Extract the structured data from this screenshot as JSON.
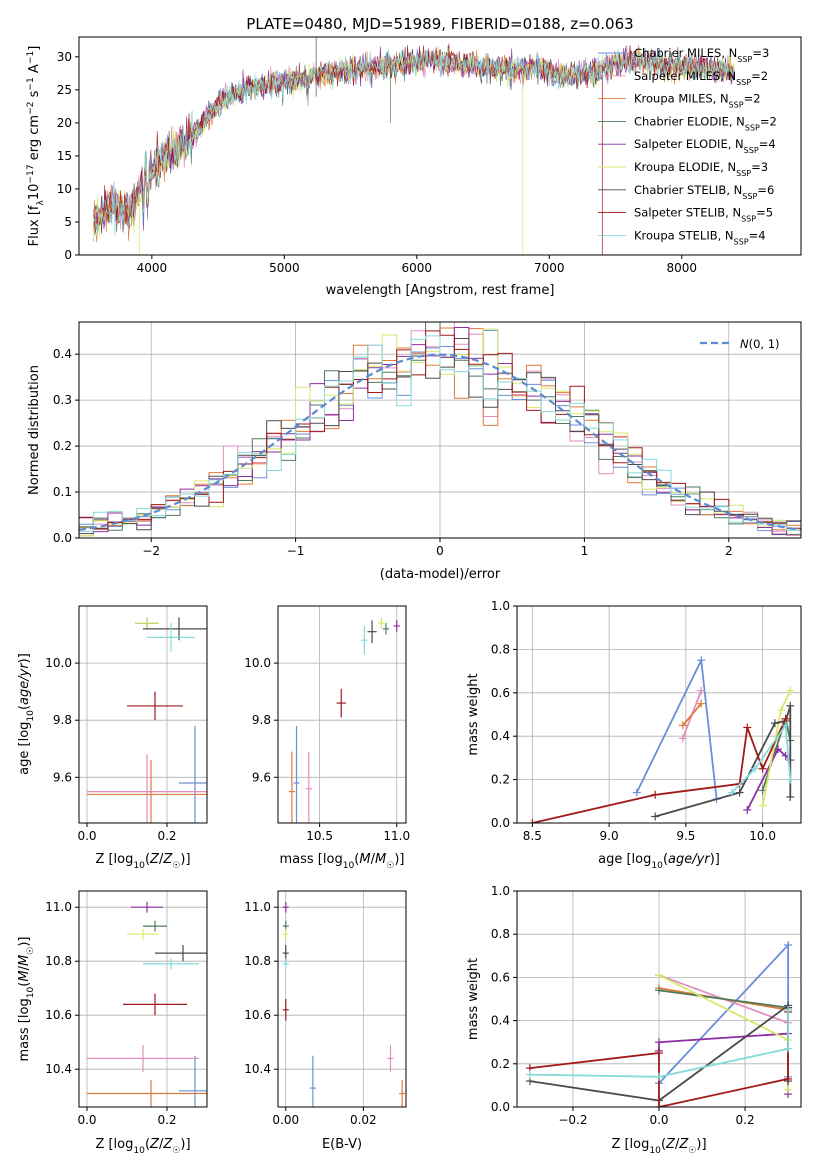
{
  "figure": {
    "title": "PLATE=0480, MJD=51989, FIBERID=0188, z=0.063"
  },
  "colors": {
    "Chabrier MILES": "#6a8fd8",
    "Salpeter MILES": "#e38ec3",
    "Kroupa MILES": "#e07b39",
    "Chabrier ELODIE": "#4e7a5a",
    "Salpeter ELODIE": "#8e2ea3",
    "Kroupa ELODIE": "#d7e86a",
    "Chabrier STELIB": "#4b4b4b",
    "Salpeter STELIB": "#a01a1a",
    "Kroupa STELIB": "#86dada",
    "gaussian": "#5b8bd0"
  },
  "chart_data": [
    {
      "id": "spectrum",
      "type": "line",
      "xlabel": "wavelength [Angstrom, rest frame]",
      "ylabel": "Flux [f_λ 10^-17 erg cm^-2 s^-1 A^-1]",
      "xlim": [
        3450,
        8900
      ],
      "ylim": [
        0,
        33
      ],
      "xticks": [
        4000,
        5000,
        6000,
        7000,
        8000
      ],
      "yticks": [
        0,
        5,
        10,
        15,
        20,
        25,
        30
      ],
      "legend_position": "top-right",
      "legend": [
        {
          "name": "Chabrier MILES",
          "nssp": "3"
        },
        {
          "name": "Salpeter MILES",
          "nssp": "2"
        },
        {
          "name": "Kroupa MILES",
          "nssp": "2"
        },
        {
          "name": "Chabrier ELODIE",
          "nssp": "2"
        },
        {
          "name": "Salpeter ELODIE",
          "nssp": "4"
        },
        {
          "name": "Kroupa ELODIE",
          "nssp": "3"
        },
        {
          "name": "Chabrier STELIB",
          "nssp": "6"
        },
        {
          "name": "Salpeter STELIB",
          "nssp": "5"
        },
        {
          "name": "Kroupa STELIB",
          "nssp": "4"
        }
      ],
      "continuum": [
        [
          3560,
          5
        ],
        [
          3650,
          7
        ],
        [
          3750,
          7.5
        ],
        [
          3850,
          7
        ],
        [
          3950,
          12
        ],
        [
          4050,
          14
        ],
        [
          4150,
          15.5
        ],
        [
          4250,
          17
        ],
        [
          4350,
          19
        ],
        [
          4500,
          23
        ],
        [
          4700,
          25
        ],
        [
          4900,
          26
        ],
        [
          5100,
          26.5
        ],
        [
          5300,
          27.5
        ],
        [
          5500,
          28
        ],
        [
          5700,
          28.5
        ],
        [
          5900,
          29
        ],
        [
          6100,
          29.5
        ],
        [
          6300,
          29
        ],
        [
          6500,
          28.5
        ],
        [
          6700,
          28
        ],
        [
          6900,
          28.5
        ],
        [
          7100,
          27
        ],
        [
          7300,
          27.5
        ],
        [
          7500,
          29
        ],
        [
          7700,
          29.5
        ],
        [
          7900,
          28.5
        ],
        [
          8100,
          28.5
        ],
        [
          8300,
          28
        ],
        [
          8400,
          27.5
        ],
        [
          8900,
          27.5
        ]
      ]
    },
    {
      "id": "residuals",
      "type": "histogram",
      "xlabel": "(data-model)/error",
      "ylabel": "Normed distribution",
      "xlim": [
        -2.5,
        2.5
      ],
      "ylim": [
        0,
        0.47
      ],
      "xticks": [
        -2,
        -1,
        0,
        1,
        2
      ],
      "yticks": [
        0.0,
        0.1,
        0.2,
        0.3,
        0.4
      ],
      "grid": true,
      "legend_label": "N(0,1)",
      "bin_width": 0.1
    },
    {
      "id": "age_vs_Z",
      "type": "scatter",
      "xlabel": "Z [log10(Z/Z☉)]",
      "ylabel": "age [log10(age/yr)]",
      "xlim": [
        -0.02,
        0.3
      ],
      "ylim": [
        9.44,
        10.2
      ],
      "xticks": [
        0.0,
        0.2
      ],
      "yticks": [
        9.6,
        9.8,
        10.0
      ],
      "grid": true,
      "points": [
        {
          "model": "Chabrier MILES",
          "x": 0.27,
          "y": 9.58,
          "xerr": 0.04,
          "yerr": 0.2
        },
        {
          "model": "Salpeter MILES",
          "x": 0.15,
          "y": 9.55,
          "xerr": 0.15,
          "yerr": 0.13
        },
        {
          "model": "Kroupa MILES",
          "x": 0.16,
          "y": 9.54,
          "xerr": 0.16,
          "yerr": 0.12
        },
        {
          "model": "Chabrier ELODIE",
          "x": 0.15,
          "y": 10.14,
          "xerr": 0.02,
          "yerr": 0.02
        },
        {
          "model": "Salpeter ELODIE",
          "x": 0.15,
          "y": 10.14,
          "xerr": 0.03,
          "yerr": 0.02
        },
        {
          "model": "Kroupa ELODIE",
          "x": 0.15,
          "y": 10.14,
          "xerr": 0.03,
          "yerr": 0.02
        },
        {
          "model": "Chabrier STELIB",
          "x": 0.23,
          "y": 10.12,
          "xerr": 0.09,
          "yerr": 0.04
        },
        {
          "model": "Salpeter STELIB",
          "x": 0.17,
          "y": 9.85,
          "xerr": 0.07,
          "yerr": 0.05
        },
        {
          "model": "Kroupa STELIB",
          "x": 0.21,
          "y": 10.09,
          "xerr": 0.06,
          "yerr": 0.05
        }
      ]
    },
    {
      "id": "age_vs_mass",
      "type": "scatter",
      "xlabel": "mass [log10(M/M☉)]",
      "ylabel": "",
      "xlim": [
        10.23,
        11.06
      ],
      "ylim": [
        9.44,
        10.2
      ],
      "xticks": [
        10.5,
        11.0
      ],
      "yticks": [
        9.6,
        9.8,
        10.0
      ],
      "grid": true,
      "points": [
        {
          "model": "Chabrier MILES",
          "x": 10.35,
          "y": 9.58,
          "xerr": 0.02,
          "yerr": 0.2
        },
        {
          "model": "Salpeter MILES",
          "x": 10.43,
          "y": 9.56,
          "xerr": 0.02,
          "yerr": 0.13
        },
        {
          "model": "Kroupa MILES",
          "x": 10.32,
          "y": 9.55,
          "xerr": 0.02,
          "yerr": 0.14
        },
        {
          "model": "Chabrier ELODIE",
          "x": 10.93,
          "y": 10.12,
          "xerr": 0.02,
          "yerr": 0.02
        },
        {
          "model": "Salpeter ELODIE",
          "x": 11.0,
          "y": 10.13,
          "xerr": 0.02,
          "yerr": 0.02
        },
        {
          "model": "Kroupa ELODIE",
          "x": 10.9,
          "y": 10.14,
          "xerr": 0.02,
          "yerr": 0.02
        },
        {
          "model": "Chabrier STELIB",
          "x": 10.84,
          "y": 10.11,
          "xerr": 0.03,
          "yerr": 0.04
        },
        {
          "model": "Salpeter STELIB",
          "x": 10.64,
          "y": 9.86,
          "xerr": 0.03,
          "yerr": 0.05
        },
        {
          "model": "Kroupa STELIB",
          "x": 10.79,
          "y": 10.08,
          "xerr": 0.02,
          "yerr": 0.05
        }
      ]
    },
    {
      "id": "weight_vs_age",
      "type": "line",
      "xlabel": "age [log10(age/yr)]",
      "ylabel": "mass weight",
      "xlim": [
        8.4,
        10.25
      ],
      "ylim": [
        0,
        1.0
      ],
      "xticks": [
        8.5,
        9.0,
        9.5,
        10.0
      ],
      "yticks": [
        0.0,
        0.2,
        0.4,
        0.6,
        0.8,
        1.0
      ],
      "grid": true,
      "series": [
        {
          "model": "Chabrier MILES",
          "points": [
            [
              9.18,
              0.14
            ],
            [
              9.6,
              0.75
            ],
            [
              9.7,
              0.11
            ]
          ]
        },
        {
          "model": "Salpeter MILES",
          "points": [
            [
              9.48,
              0.39
            ],
            [
              9.6,
              0.61
            ]
          ]
        },
        {
          "model": "Kroupa MILES",
          "points": [
            [
              9.48,
              0.45
            ],
            [
              9.6,
              0.55
            ]
          ]
        },
        {
          "model": "Chabrier ELODIE",
          "points": [
            [
              10.0,
              0.15
            ],
            [
              10.15,
              0.48
            ],
            [
              10.18,
              0.38
            ]
          ]
        },
        {
          "model": "Salpeter ELODIE",
          "points": [
            [
              9.9,
              0.06
            ],
            [
              10.1,
              0.34
            ],
            [
              10.15,
              0.31
            ],
            [
              10.18,
              0.29
            ]
          ]
        },
        {
          "model": "Kroupa ELODIE",
          "points": [
            [
              10.0,
              0.08
            ],
            [
              10.12,
              0.52
            ],
            [
              10.18,
              0.61
            ]
          ]
        },
        {
          "model": "Chabrier STELIB",
          "points": [
            [
              9.3,
              0.03
            ],
            [
              9.85,
              0.14
            ],
            [
              10.08,
              0.46
            ],
            [
              10.15,
              0.47
            ],
            [
              10.18,
              0.54
            ],
            [
              10.18,
              0.12
            ]
          ]
        },
        {
          "model": "Salpeter STELIB",
          "points": [
            [
              8.5,
              0.0
            ],
            [
              9.3,
              0.13
            ],
            [
              9.85,
              0.18
            ],
            [
              9.9,
              0.44
            ],
            [
              10.0,
              0.25
            ],
            [
              10.15,
              0.48
            ]
          ]
        },
        {
          "model": "Kroupa STELIB",
          "points": [
            [
              9.8,
              0.14
            ],
            [
              9.95,
              0.25
            ],
            [
              10.15,
              0.45
            ],
            [
              10.18,
              0.2
            ]
          ]
        }
      ]
    },
    {
      "id": "mass_vs_Z",
      "type": "scatter",
      "xlabel": "Z [log10(Z/Z☉)]",
      "ylabel": "mass [log10(M/M☉)]",
      "xlim": [
        -0.02,
        0.3
      ],
      "ylim": [
        10.26,
        11.06
      ],
      "xticks": [
        0.0,
        0.2
      ],
      "yticks": [
        10.4,
        10.6,
        10.8,
        11.0
      ],
      "grid": true,
      "points": [
        {
          "model": "Chabrier MILES",
          "x": 0.27,
          "y": 10.32,
          "xerr": 0.04,
          "yerr": 0.13
        },
        {
          "model": "Salpeter MILES",
          "x": 0.14,
          "y": 10.44,
          "xerr": 0.14,
          "yerr": 0.05
        },
        {
          "model": "Kroupa MILES",
          "x": 0.16,
          "y": 10.31,
          "xerr": 0.16,
          "yerr": 0.05
        },
        {
          "model": "Chabrier ELODIE",
          "x": 0.17,
          "y": 10.93,
          "xerr": 0.03,
          "yerr": 0.02
        },
        {
          "model": "Salpeter ELODIE",
          "x": 0.15,
          "y": 11.0,
          "xerr": 0.04,
          "yerr": 0.02
        },
        {
          "model": "Kroupa ELODIE",
          "x": 0.14,
          "y": 10.9,
          "xerr": 0.04,
          "yerr": 0.02
        },
        {
          "model": "Chabrier STELIB",
          "x": 0.24,
          "y": 10.83,
          "xerr": 0.07,
          "yerr": 0.03
        },
        {
          "model": "Salpeter STELIB",
          "x": 0.17,
          "y": 10.64,
          "xerr": 0.08,
          "yerr": 0.04
        },
        {
          "model": "Kroupa STELIB",
          "x": 0.21,
          "y": 10.79,
          "xerr": 0.07,
          "yerr": 0.02
        }
      ]
    },
    {
      "id": "mass_vs_ebv",
      "type": "scatter",
      "xlabel": "E(B-V)",
      "ylabel": "",
      "xlim": [
        -0.002,
        0.031
      ],
      "ylim": [
        10.26,
        11.06
      ],
      "xticks": [
        0.0,
        0.02
      ],
      "yticks": [
        10.4,
        10.6,
        10.8,
        11.0
      ],
      "grid": true,
      "points": [
        {
          "model": "Chabrier MILES",
          "x": 0.007,
          "y": 10.33,
          "xerr": 0,
          "yerr": 0.12
        },
        {
          "model": "Salpeter MILES",
          "x": 0.027,
          "y": 10.44,
          "xerr": 0,
          "yerr": 0.05
        },
        {
          "model": "Kroupa MILES",
          "x": 0.03,
          "y": 10.31,
          "xerr": 0,
          "yerr": 0.05
        },
        {
          "model": "Chabrier ELODIE",
          "x": 0.0,
          "y": 10.93,
          "xerr": 0,
          "yerr": 0.02
        },
        {
          "model": "Salpeter ELODIE",
          "x": 0.0,
          "y": 11.0,
          "xerr": 0,
          "yerr": 0.02
        },
        {
          "model": "Kroupa ELODIE",
          "x": 0.0,
          "y": 10.9,
          "xerr": 0,
          "yerr": 0.02
        },
        {
          "model": "Chabrier STELIB",
          "x": 0.0,
          "y": 10.83,
          "xerr": 0,
          "yerr": 0.03
        },
        {
          "model": "Salpeter STELIB",
          "x": 0.0,
          "y": 10.62,
          "xerr": 0,
          "yerr": 0.04
        },
        {
          "model": "Kroupa STELIB",
          "x": 0.0,
          "y": 10.79,
          "xerr": 0,
          "yerr": 0.02
        }
      ]
    },
    {
      "id": "weight_vs_Z",
      "type": "line",
      "xlabel": "Z [log10(Z/Z☉)]",
      "ylabel": "mass weight",
      "xlim": [
        -0.33,
        0.33
      ],
      "ylim": [
        0,
        1.0
      ],
      "xticks": [
        -0.2,
        0.0,
        0.2
      ],
      "yticks": [
        0.0,
        0.2,
        0.4,
        0.6,
        0.8,
        1.0
      ],
      "grid": true,
      "series": [
        {
          "model": "Chabrier MILES",
          "points": [
            [
              0.0,
              0.11
            ],
            [
              0.3,
              0.75
            ],
            [
              0.3,
              0.14
            ]
          ]
        },
        {
          "model": "Salpeter MILES",
          "points": [
            [
              0.0,
              0.61
            ],
            [
              0.3,
              0.39
            ]
          ]
        },
        {
          "model": "Kroupa MILES",
          "points": [
            [
              0.0,
              0.55
            ],
            [
              0.3,
              0.45
            ]
          ]
        },
        {
          "model": "Chabrier ELODIE",
          "points": [
            [
              0.0,
              0.54
            ],
            [
              0.3,
              0.46
            ]
          ]
        },
        {
          "model": "Salpeter ELODIE",
          "points": [
            [
              0.0,
              0.26
            ],
            [
              0.0,
              0.3
            ],
            [
              0.3,
              0.34
            ],
            [
              0.3,
              0.06
            ]
          ]
        },
        {
          "model": "Kroupa ELODIE",
          "points": [
            [
              0.0,
              0.61
            ],
            [
              0.3,
              0.31
            ],
            [
              0.3,
              0.08
            ]
          ]
        },
        {
          "model": "Chabrier STELIB",
          "points": [
            [
              -0.3,
              0.12
            ],
            [
              0.0,
              0.03
            ],
            [
              0.3,
              0.47
            ],
            [
              0.3,
              0.46
            ],
            [
              0.3,
              0.12
            ]
          ]
        },
        {
          "model": "Salpeter STELIB",
          "points": [
            [
              -0.3,
              0.18
            ],
            [
              0.0,
              0.25
            ],
            [
              0.0,
              0.0
            ],
            [
              0.3,
              0.13
            ],
            [
              0.3,
              0.44
            ]
          ]
        },
        {
          "model": "Kroupa STELIB",
          "points": [
            [
              -0.3,
              0.15
            ],
            [
              0.0,
              0.14
            ],
            [
              0.3,
              0.27
            ],
            [
              0.3,
              0.45
            ]
          ]
        }
      ]
    }
  ]
}
